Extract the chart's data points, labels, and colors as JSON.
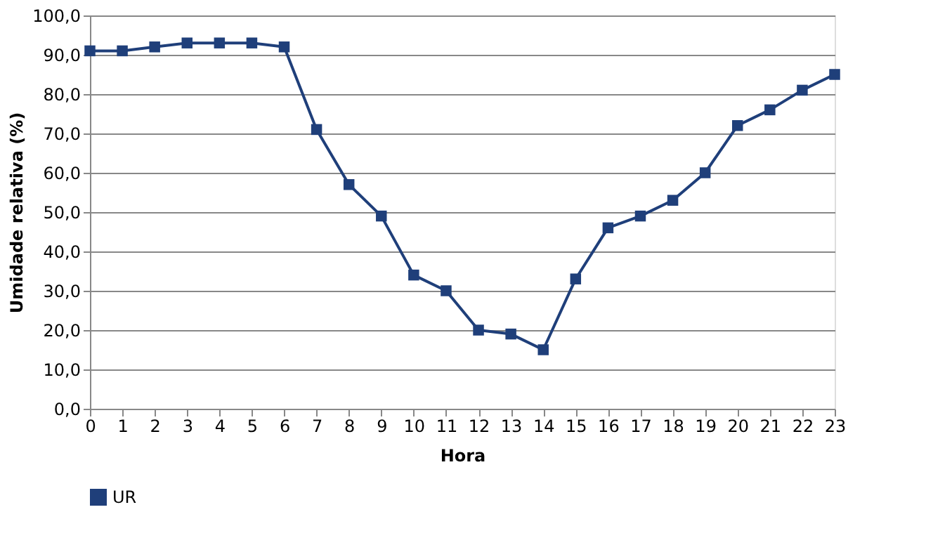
{
  "chart_data": {
    "type": "line",
    "xlabel": "Hora",
    "ylabel": "Umidade relativa (%)",
    "x": [
      0,
      1,
      2,
      3,
      4,
      5,
      6,
      7,
      8,
      9,
      10,
      11,
      12,
      13,
      14,
      15,
      16,
      17,
      18,
      19,
      20,
      21,
      22,
      23
    ],
    "series": [
      {
        "name": "UR",
        "color": "#1f3f7a",
        "values": [
          91,
          91,
          92,
          93,
          93,
          93,
          92,
          71,
          57,
          49,
          34,
          30,
          20,
          19,
          15,
          33,
          46,
          49,
          53,
          60,
          72,
          76,
          81,
          85
        ]
      }
    ],
    "xlim": [
      0,
      23
    ],
    "xticks": [
      0,
      1,
      2,
      3,
      4,
      5,
      6,
      7,
      8,
      9,
      10,
      11,
      12,
      13,
      14,
      15,
      16,
      17,
      18,
      19,
      20,
      21,
      22,
      23
    ],
    "ylim": [
      0,
      100
    ],
    "yticks": [
      {
        "value": 0,
        "label": "0,0"
      },
      {
        "value": 10,
        "label": "10,0"
      },
      {
        "value": 20,
        "label": "20,0"
      },
      {
        "value": 30,
        "label": "30,0"
      },
      {
        "value": 40,
        "label": "40,0"
      },
      {
        "value": 50,
        "label": "50,0"
      },
      {
        "value": 60,
        "label": "60,0"
      },
      {
        "value": 70,
        "label": "70,0"
      },
      {
        "value": 80,
        "label": "80,0"
      },
      {
        "value": 90,
        "label": "90,0"
      },
      {
        "value": 100,
        "label": "100,0"
      }
    ],
    "grid": "y",
    "legend": "bottom",
    "marker": "square",
    "line_style": "solid"
  }
}
